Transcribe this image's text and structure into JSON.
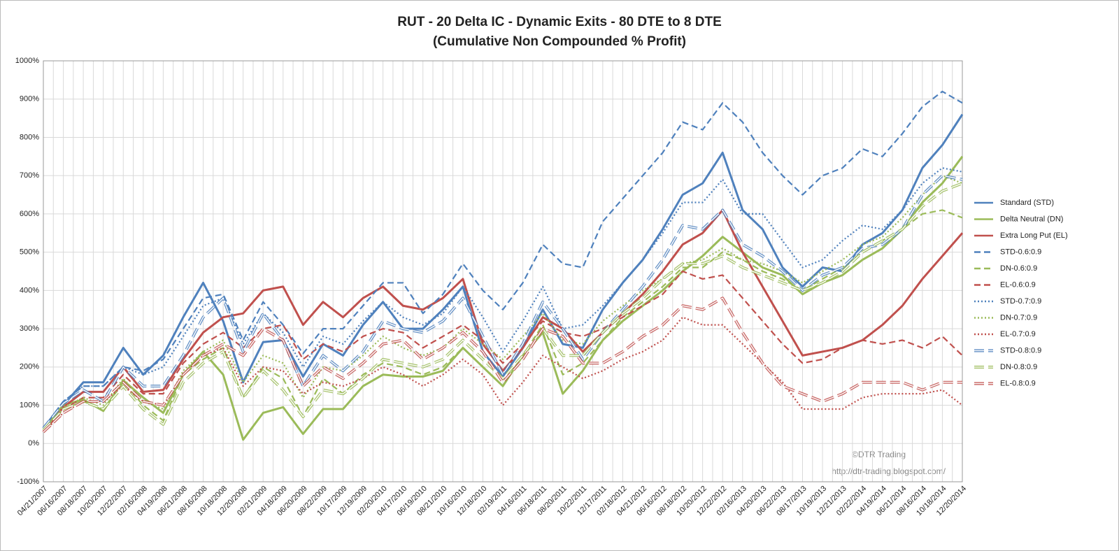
{
  "chart_data": {
    "type": "line",
    "title": "RUT - 20 Delta IC - Dynamic Exits - 80 DTE to 8 DTE",
    "subtitle": "(Cumulative Non Compounded % Profit)",
    "annotations": [
      "©DTR Trading",
      "http://dtr-trading.blogspot.com/"
    ],
    "categories": [
      "04/21/2007",
      "06/16/2007",
      "08/18/2007",
      "10/20/2007",
      "12/22/2007",
      "02/16/2008",
      "04/19/2008",
      "06/21/2008",
      "08/16/2008",
      "10/18/2008",
      "12/20/2008",
      "02/21/2009",
      "04/18/2009",
      "06/20/2009",
      "08/22/2009",
      "10/17/2009",
      "12/19/2009",
      "02/20/2010",
      "04/17/2010",
      "06/19/2010",
      "08/21/2010",
      "10/16/2010",
      "12/18/2010",
      "02/19/2011",
      "04/16/2011",
      "06/18/2011",
      "08/20/2011",
      "10/22/2011",
      "12/17/2011",
      "02/18/2012",
      "04/21/2012",
      "06/16/2012",
      "08/18/2012",
      "10/20/2012",
      "12/22/2012",
      "02/16/2013",
      "04/20/2013",
      "06/22/2013",
      "08/17/2013",
      "10/19/2013",
      "12/21/2013",
      "02/22/2014",
      "04/19/2014",
      "06/21/2014",
      "08/16/2014",
      "10/18/2014",
      "12/20/2014"
    ],
    "ylim": [
      -100,
      1000
    ],
    "yticks": [
      {
        "value": -100,
        "label": "-100%"
      },
      {
        "value": 0,
        "label": "0%"
      },
      {
        "value": 100,
        "label": "100%"
      },
      {
        "value": 200,
        "label": "200%"
      },
      {
        "value": 300,
        "label": "300%"
      },
      {
        "value": 400,
        "label": "400%"
      },
      {
        "value": 500,
        "label": "500%"
      },
      {
        "value": 600,
        "label": "600%"
      },
      {
        "value": 700,
        "label": "700%"
      },
      {
        "value": 800,
        "label": "800%"
      },
      {
        "value": 900,
        "label": "900%"
      },
      {
        "value": 1000,
        "label": "1000%"
      }
    ],
    "grid": true,
    "legend": "right",
    "series": [
      {
        "name": "Standard (STD)",
        "color": "#4f81bd",
        "dash": "solid",
        "values": [
          40,
          100,
          160,
          160,
          250,
          180,
          230,
          330,
          420,
          320,
          160,
          265,
          270,
          175,
          260,
          230,
          310,
          370,
          300,
          300,
          350,
          410,
          240,
          175,
          250,
          350,
          260,
          250,
          350,
          420,
          480,
          560,
          650,
          680,
          760,
          610,
          560,
          460,
          410,
          460,
          450,
          520,
          550,
          610,
          720,
          780,
          860
        ]
      },
      {
        "name": "Delta Neutral (DN)",
        "color": "#9bbb59",
        "dash": "solid",
        "values": [
          40,
          100,
          115,
          85,
          165,
          120,
          80,
          180,
          240,
          180,
          10,
          80,
          95,
          25,
          90,
          90,
          150,
          180,
          175,
          175,
          190,
          250,
          200,
          150,
          230,
          290,
          130,
          190,
          270,
          320,
          360,
          400,
          450,
          490,
          540,
          500,
          460,
          440,
          390,
          420,
          440,
          480,
          510,
          560,
          630,
          680,
          750
        ]
      },
      {
        "name": "Extra Long Put (EL)",
        "color": "#c0504d",
        "dash": "solid",
        "values": [
          30,
          95,
          135,
          135,
          200,
          135,
          140,
          220,
          290,
          330,
          340,
          400,
          410,
          310,
          370,
          330,
          380,
          410,
          360,
          350,
          380,
          430,
          260,
          190,
          250,
          330,
          300,
          240,
          290,
          340,
          390,
          450,
          520,
          550,
          610,
          500,
          410,
          320,
          230,
          240,
          250,
          270,
          310,
          360,
          430,
          490,
          550
        ]
      },
      {
        "name": "STD-0.6:0.9",
        "color": "#4f81bd",
        "dash": "dash",
        "values": [
          40,
          110,
          150,
          150,
          200,
          190,
          220,
          300,
          380,
          390,
          270,
          370,
          310,
          235,
          300,
          300,
          360,
          420,
          420,
          340,
          390,
          470,
          400,
          350,
          420,
          520,
          470,
          460,
          580,
          640,
          700,
          760,
          840,
          820,
          890,
          840,
          760,
          700,
          650,
          700,
          720,
          770,
          750,
          810,
          880,
          920,
          890
        ]
      },
      {
        "name": "DN-0.6:0.9",
        "color": "#9bbb59",
        "dash": "dash",
        "values": [
          35,
          90,
          110,
          90,
          160,
          100,
          60,
          180,
          220,
          250,
          120,
          200,
          170,
          70,
          170,
          130,
          180,
          210,
          200,
          180,
          200,
          250,
          200,
          150,
          230,
          310,
          180,
          210,
          270,
          330,
          370,
          410,
          460,
          460,
          500,
          480,
          450,
          430,
          400,
          430,
          460,
          500,
          530,
          560,
          600,
          610,
          590
        ]
      },
      {
        "name": "EL-0.6:0.9",
        "color": "#c0504d",
        "dash": "dash",
        "values": [
          30,
          90,
          120,
          120,
          180,
          130,
          130,
          210,
          260,
          290,
          250,
          300,
          310,
          220,
          260,
          240,
          280,
          300,
          290,
          250,
          280,
          310,
          270,
          210,
          260,
          320,
          290,
          280,
          300,
          330,
          360,
          390,
          450,
          430,
          440,
          380,
          320,
          260,
          210,
          220,
          250,
          270,
          260,
          270,
          250,
          280,
          230
        ]
      },
      {
        "name": "STD-0.7:0.9",
        "color": "#4f81bd",
        "dash": "dot",
        "values": [
          40,
          110,
          150,
          150,
          200,
          180,
          200,
          280,
          360,
          380,
          260,
          340,
          290,
          200,
          280,
          260,
          320,
          370,
          330,
          310,
          340,
          410,
          330,
          240,
          320,
          410,
          300,
          310,
          360,
          420,
          480,
          550,
          630,
          630,
          690,
          600,
          600,
          530,
          460,
          480,
          530,
          570,
          560,
          610,
          680,
          720,
          710
        ]
      },
      {
        "name": "DN-0.7:0.9",
        "color": "#9bbb59",
        "dash": "dot",
        "values": [
          35,
          95,
          120,
          100,
          170,
          110,
          90,
          190,
          240,
          270,
          160,
          230,
          210,
          120,
          200,
          190,
          230,
          280,
          250,
          230,
          250,
          300,
          260,
          220,
          280,
          340,
          270,
          260,
          320,
          360,
          400,
          430,
          470,
          480,
          510,
          480,
          470,
          450,
          420,
          450,
          480,
          520,
          540,
          590,
          650,
          700,
          680
        ]
      },
      {
        "name": "EL-0.7:0.9",
        "color": "#c0504d",
        "dash": "dot",
        "values": [
          30,
          80,
          110,
          110,
          150,
          110,
          100,
          180,
          230,
          250,
          150,
          200,
          190,
          130,
          160,
          150,
          170,
          200,
          180,
          150,
          180,
          220,
          180,
          100,
          160,
          230,
          200,
          170,
          190,
          220,
          240,
          270,
          330,
          310,
          310,
          260,
          210,
          160,
          90,
          90,
          90,
          120,
          130,
          130,
          130,
          140,
          100
        ]
      },
      {
        "name": "STD-0.8:0.9",
        "color": "#4f81bd",
        "dash": "double",
        "values": [
          40,
          105,
          140,
          110,
          200,
          150,
          150,
          230,
          330,
          380,
          240,
          340,
          270,
          150,
          230,
          190,
          240,
          320,
          300,
          290,
          320,
          380,
          280,
          180,
          260,
          370,
          300,
          220,
          290,
          350,
          410,
          480,
          570,
          560,
          610,
          520,
          490,
          450,
          400,
          440,
          460,
          510,
          520,
          560,
          650,
          700,
          690
        ]
      },
      {
        "name": "DN-0.8:0.9",
        "color": "#9bbb59",
        "dash": "double",
        "values": [
          35,
          90,
          110,
          90,
          150,
          90,
          50,
          160,
          210,
          240,
          120,
          190,
          140,
          70,
          140,
          130,
          170,
          220,
          210,
          200,
          220,
          270,
          220,
          170,
          230,
          300,
          230,
          230,
          290,
          340,
          380,
          430,
          470,
          470,
          490,
          460,
          440,
          420,
          400,
          420,
          450,
          500,
          530,
          560,
          620,
          660,
          680
        ]
      },
      {
        "name": "EL-0.8:0.9",
        "color": "#c0504d",
        "dash": "double",
        "values": [
          30,
          80,
          110,
          110,
          160,
          110,
          100,
          180,
          230,
          260,
          230,
          300,
          270,
          150,
          200,
          170,
          210,
          260,
          270,
          220,
          250,
          290,
          240,
          160,
          220,
          300,
          280,
          210,
          210,
          240,
          280,
          310,
          360,
          350,
          380,
          290,
          210,
          150,
          130,
          110,
          130,
          160,
          160,
          160,
          140,
          160,
          160
        ]
      }
    ]
  }
}
